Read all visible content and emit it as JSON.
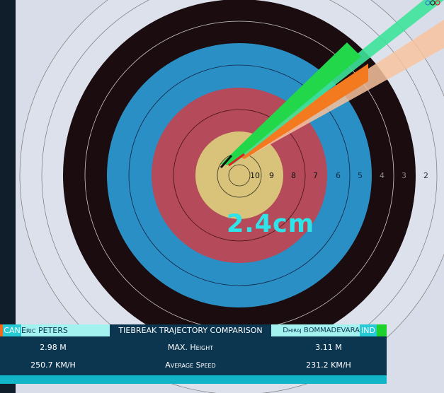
{
  "measurement": "2.4cm",
  "target": {
    "ring_numbers": [
      "10",
      "9",
      "8",
      "7",
      "6",
      "5",
      "4",
      "3",
      "2"
    ],
    "colors": {
      "gold": "#d9c27a",
      "red": "#b54a5a",
      "blue": "#2a8fc4",
      "black": "#1b0c0f",
      "white": "#dde1ec"
    }
  },
  "trajectory_colors": {
    "CAN": "#f47a20",
    "IND": "#22d84a"
  },
  "bar": {
    "left": {
      "country": "CAN",
      "name": "Eric PETERS",
      "flag_color": "#f26a1b"
    },
    "title": "TIEBREAK TRAJECTORY COMPARISON",
    "right": {
      "country": "IND",
      "name": "Dhiraj BOMMADEVARA",
      "flag_color": "#1ed12c"
    },
    "rows": [
      {
        "left": "2.98 M",
        "label": "MAX. Height",
        "right": "3.11 M"
      },
      {
        "left": "250.7 KM/H",
        "label": "Average Speed",
        "right": "231.2 KM/H"
      }
    ]
  }
}
